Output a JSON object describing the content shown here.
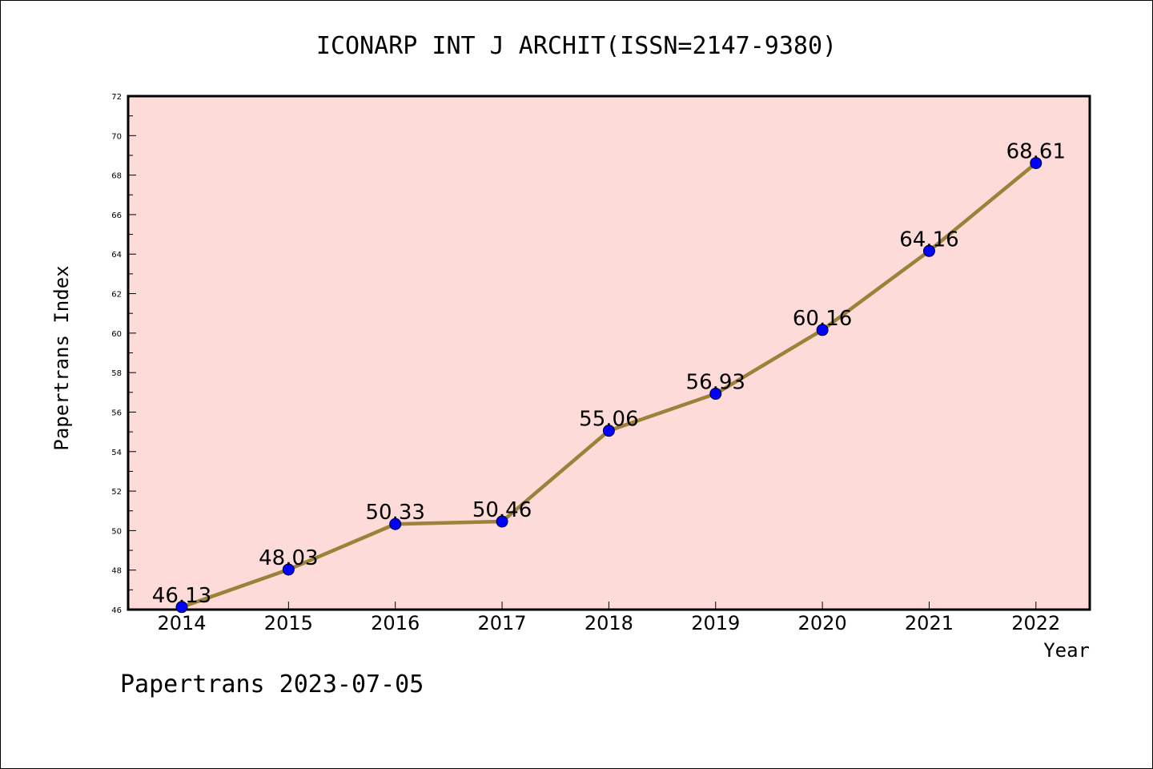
{
  "title": "ICONARP INT J ARCHIT(ISSN=2147-9380)",
  "footer": "Papertrans 2023-07-05",
  "chart_data": {
    "type": "line",
    "title": "ICONARP INT J ARCHIT(ISSN=2147-9380)",
    "xlabel": "Year",
    "ylabel": "Papertrans Index",
    "categories": [
      "2014",
      "2015",
      "2016",
      "2017",
      "2018",
      "2019",
      "2020",
      "2021",
      "2022"
    ],
    "values": [
      46.13,
      48.03,
      50.33,
      50.46,
      55.06,
      56.93,
      60.16,
      64.16,
      68.61
    ],
    "data_labels": [
      "46.13",
      "48.03",
      "50.33",
      "50.46",
      "55.06",
      "56.93",
      "60.16",
      "64.16",
      "68.61"
    ],
    "ylim": [
      46,
      72
    ],
    "yticks": [
      "46",
      "48",
      "50",
      "52",
      "54",
      "56",
      "58",
      "60",
      "62",
      "64",
      "66",
      "68",
      "70",
      "72"
    ],
    "grid": false,
    "legend": "none",
    "colors": {
      "plot_background": "#fddbd8",
      "line": "#9b8139",
      "marker": "#0000ff"
    }
  }
}
